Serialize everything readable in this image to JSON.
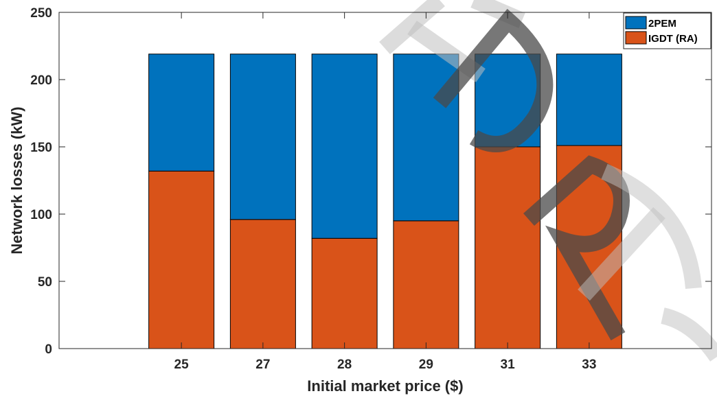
{
  "chart_data": {
    "type": "bar",
    "stacked": true,
    "categories": [
      "25",
      "27",
      "28",
      "29",
      "31",
      "33"
    ],
    "series": [
      {
        "name": "IGDT (RA)",
        "color": "#D95319",
        "values": [
          132,
          96,
          82,
          95,
          150,
          151
        ]
      },
      {
        "name": "2PEM",
        "color": "#0072BD",
        "values": [
          87,
          123,
          137,
          124,
          69,
          68
        ]
      }
    ],
    "totals": [
      219,
      219,
      219,
      219,
      219,
      219
    ],
    "xlabel": "Initial market price ($)",
    "ylabel": "Network losses (kW)",
    "ylim": [
      0,
      250
    ],
    "yticks": [
      0,
      50,
      100,
      150,
      200,
      250
    ],
    "grid": false,
    "legend_position": "top-right",
    "legend_order": [
      "2PEM",
      "IGDT (RA)"
    ]
  },
  "watermark": {
    "icon": "watermark-icon",
    "color_light": "#bfbfbf",
    "color_dark": "#4a4a4a"
  }
}
